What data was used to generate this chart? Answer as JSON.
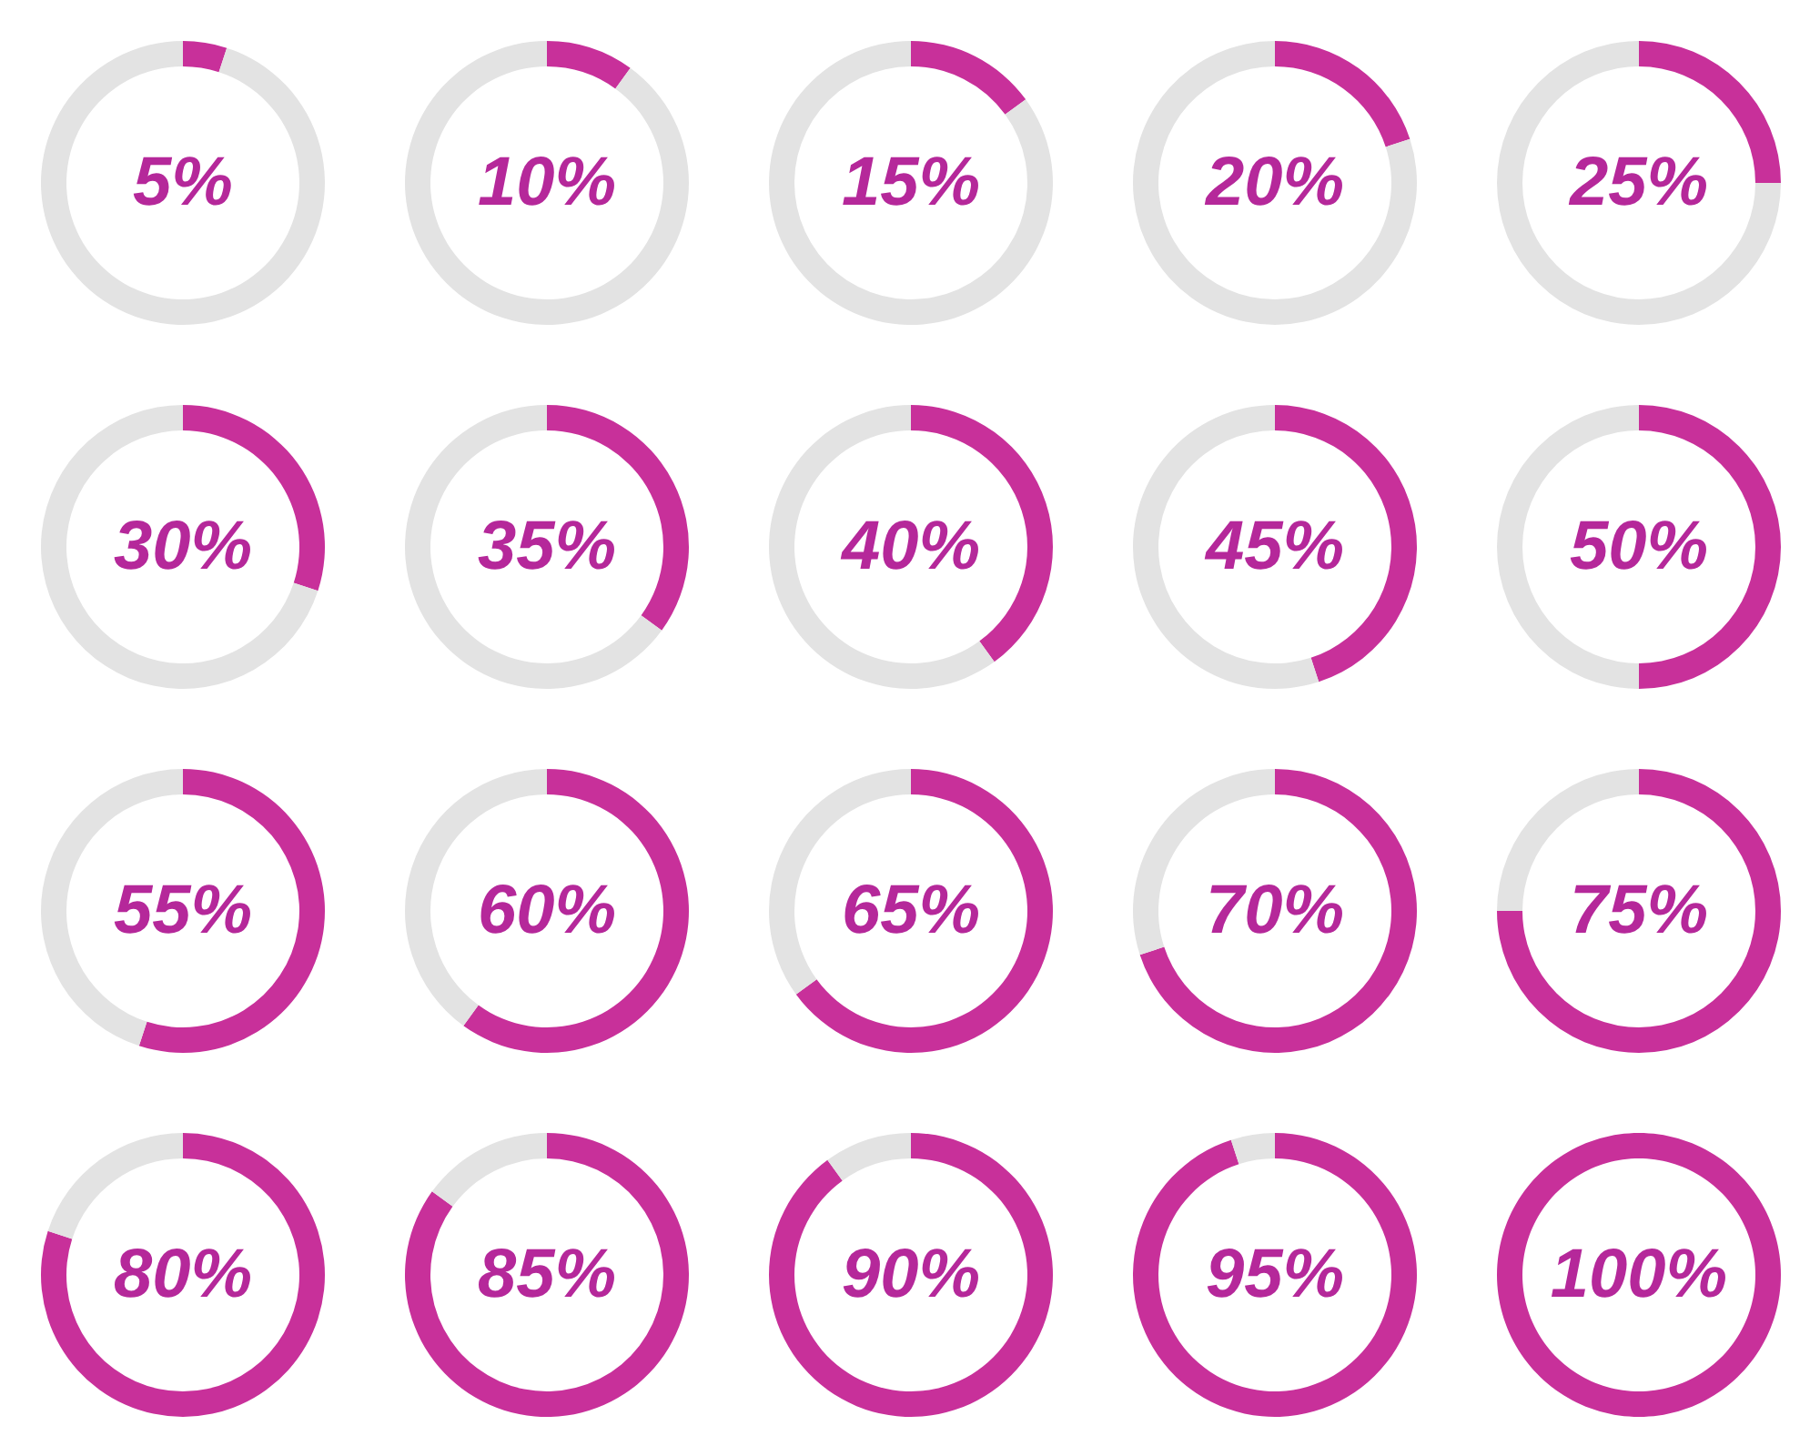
{
  "chart_data": [
    {
      "type": "donut",
      "categories": [
        null,
        null
      ],
      "values": [
        5,
        95
      ],
      "colors": [
        "#c8309a",
        "#e3e3e3"
      ],
      "annotations": [
        "5%"
      ]
    },
    {
      "type": "donut",
      "categories": [
        null,
        null
      ],
      "values": [
        10,
        90
      ],
      "colors": [
        "#c8309a",
        "#e3e3e3"
      ],
      "annotations": [
        "10%"
      ]
    },
    {
      "type": "donut",
      "categories": [
        null,
        null
      ],
      "values": [
        15,
        85
      ],
      "colors": [
        "#c8309a",
        "#e3e3e3"
      ],
      "annotations": [
        "15%"
      ]
    },
    {
      "type": "donut",
      "categories": [
        null,
        null
      ],
      "values": [
        20,
        80
      ],
      "colors": [
        "#c8309a",
        "#e3e3e3"
      ],
      "annotations": [
        "20%"
      ]
    },
    {
      "type": "donut",
      "categories": [
        null,
        null
      ],
      "values": [
        25,
        75
      ],
      "colors": [
        "#c8309a",
        "#e3e3e3"
      ],
      "annotations": [
        "25%"
      ]
    },
    {
      "type": "donut",
      "categories": [
        null,
        null
      ],
      "values": [
        30,
        70
      ],
      "colors": [
        "#c8309a",
        "#e3e3e3"
      ],
      "annotations": [
        "30%"
      ]
    },
    {
      "type": "donut",
      "categories": [
        null,
        null
      ],
      "values": [
        35,
        65
      ],
      "colors": [
        "#c8309a",
        "#e3e3e3"
      ],
      "annotations": [
        "35%"
      ]
    },
    {
      "type": "donut",
      "categories": [
        null,
        null
      ],
      "values": [
        40,
        60
      ],
      "colors": [
        "#c8309a",
        "#e3e3e3"
      ],
      "annotations": [
        "40%"
      ]
    },
    {
      "type": "donut",
      "categories": [
        null,
        null
      ],
      "values": [
        45,
        55
      ],
      "colors": [
        "#c8309a",
        "#e3e3e3"
      ],
      "annotations": [
        "45%"
      ]
    },
    {
      "type": "donut",
      "categories": [
        null,
        null
      ],
      "values": [
        50,
        50
      ],
      "colors": [
        "#c8309a",
        "#e3e3e3"
      ],
      "annotations": [
        "50%"
      ]
    },
    {
      "type": "donut",
      "categories": [
        null,
        null
      ],
      "values": [
        55,
        45
      ],
      "colors": [
        "#c8309a",
        "#e3e3e3"
      ],
      "annotations": [
        "55%"
      ]
    },
    {
      "type": "donut",
      "categories": [
        null,
        null
      ],
      "values": [
        60,
        40
      ],
      "colors": [
        "#c8309a",
        "#e3e3e3"
      ],
      "annotations": [
        "60%"
      ]
    },
    {
      "type": "donut",
      "categories": [
        null,
        null
      ],
      "values": [
        65,
        35
      ],
      "colors": [
        "#c8309a",
        "#e3e3e3"
      ],
      "annotations": [
        "65%"
      ]
    },
    {
      "type": "donut",
      "categories": [
        null,
        null
      ],
      "values": [
        70,
        30
      ],
      "colors": [
        "#c8309a",
        "#e3e3e3"
      ],
      "annotations": [
        "70%"
      ]
    },
    {
      "type": "donut",
      "categories": [
        null,
        null
      ],
      "values": [
        75,
        25
      ],
      "colors": [
        "#c8309a",
        "#e3e3e3"
      ],
      "annotations": [
        "75%"
      ]
    },
    {
      "type": "donut",
      "categories": [
        null,
        null
      ],
      "values": [
        80,
        20
      ],
      "colors": [
        "#c8309a",
        "#e3e3e3"
      ],
      "annotations": [
        "80%"
      ]
    },
    {
      "type": "donut",
      "categories": [
        null,
        null
      ],
      "values": [
        85,
        15
      ],
      "colors": [
        "#c8309a",
        "#e3e3e3"
      ],
      "annotations": [
        "85%"
      ]
    },
    {
      "type": "donut",
      "categories": [
        null,
        null
      ],
      "values": [
        90,
        10
      ],
      "colors": [
        "#c8309a",
        "#e3e3e3"
      ],
      "annotations": [
        "90%"
      ]
    },
    {
      "type": "donut",
      "categories": [
        null,
        null
      ],
      "values": [
        95,
        5
      ],
      "colors": [
        "#c8309a",
        "#e3e3e3"
      ],
      "annotations": [
        "95%"
      ]
    },
    {
      "type": "donut",
      "categories": [
        null,
        null
      ],
      "values": [
        100,
        0
      ],
      "colors": [
        "#c8309a",
        "#e3e3e3"
      ],
      "annotations": [
        "100%"
      ]
    }
  ]
}
